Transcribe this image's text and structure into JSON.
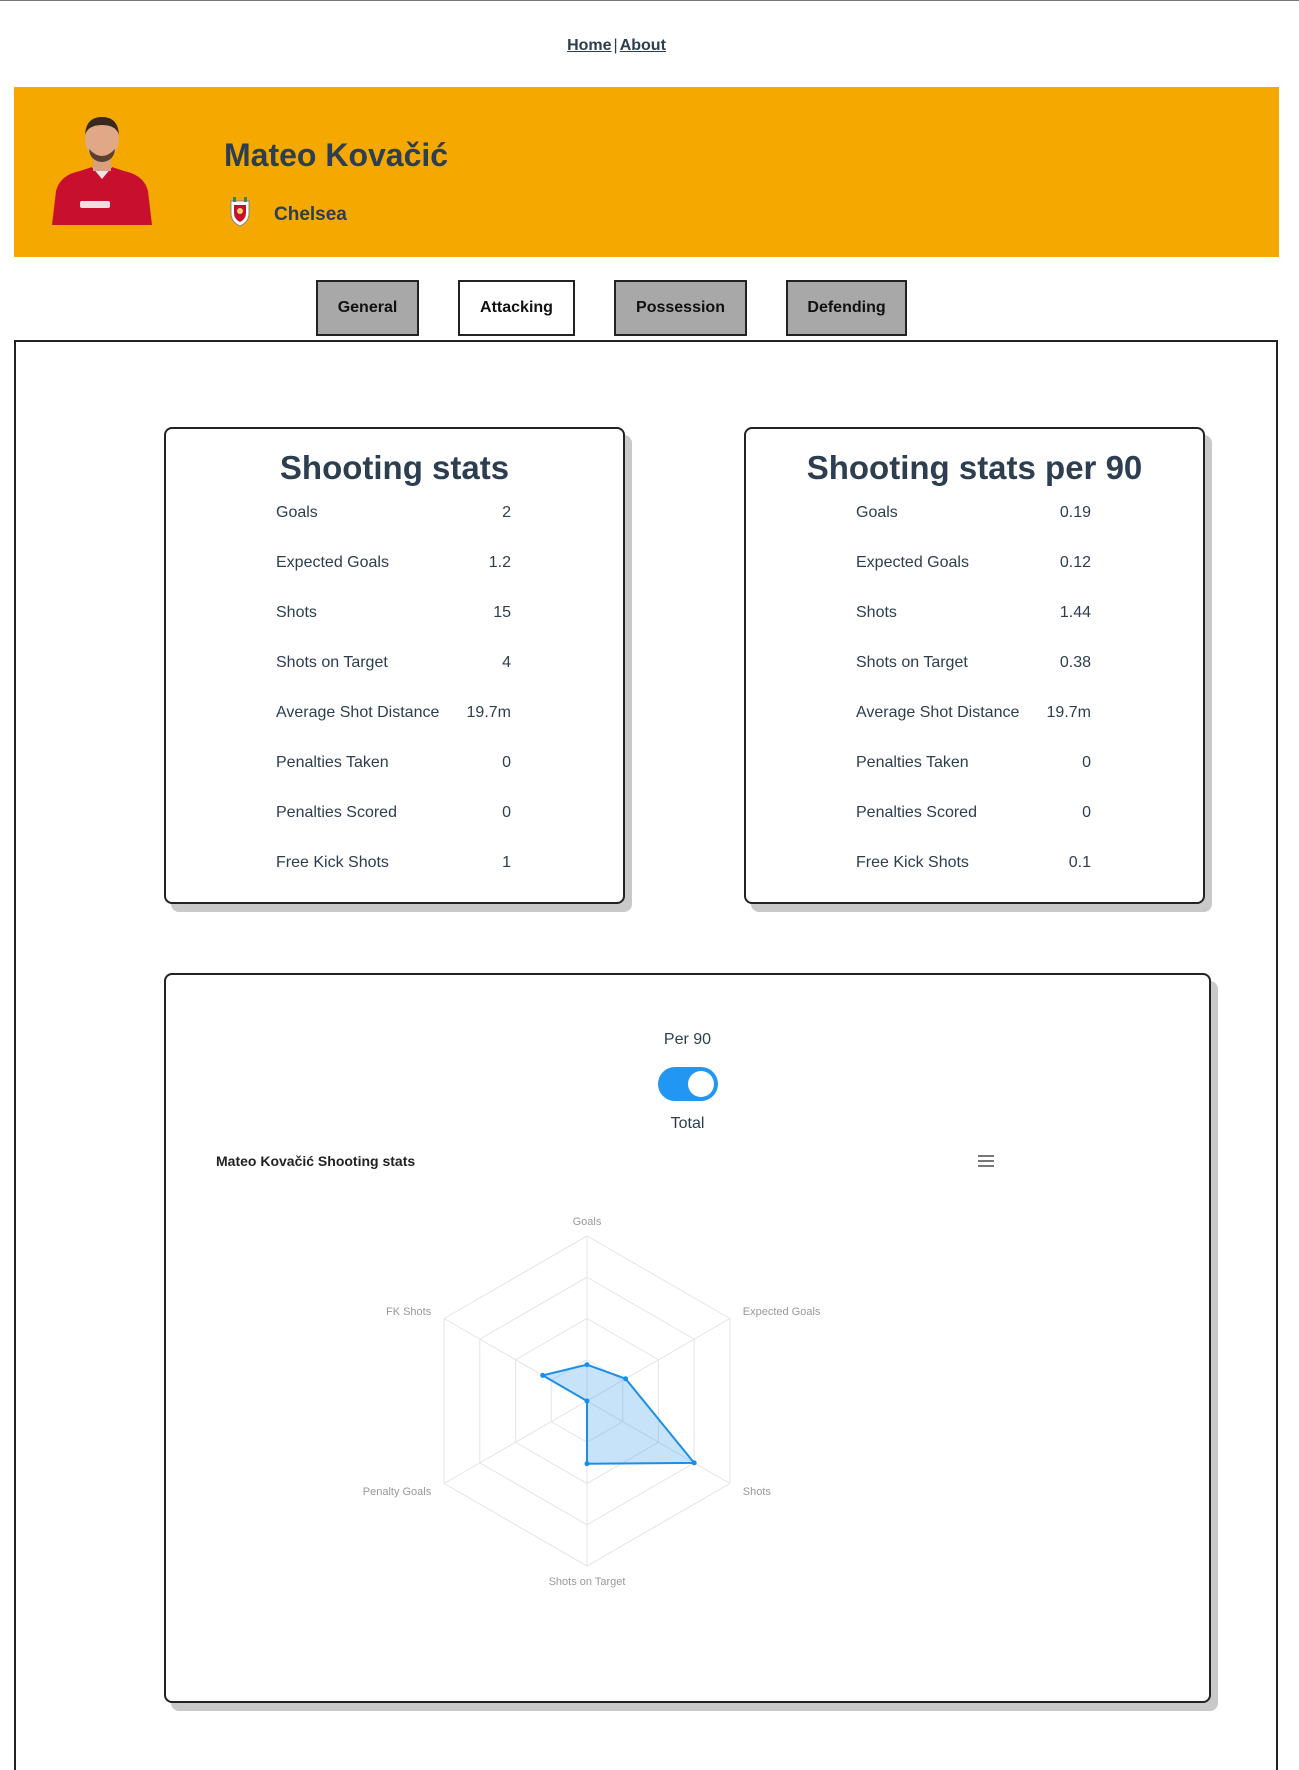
{
  "nav": {
    "home": "Home",
    "separator": "|",
    "about": "About"
  },
  "player": {
    "name": "Mateo Kovačić",
    "club": "Chelsea"
  },
  "tabs": [
    {
      "label": "General"
    },
    {
      "label": "Attacking"
    },
    {
      "label": "Possession"
    },
    {
      "label": "Defending"
    }
  ],
  "active_tab": "Attacking",
  "shooting_stats": {
    "title": "Shooting stats",
    "rows": [
      {
        "label": "Goals",
        "value": "2"
      },
      {
        "label": "Expected Goals",
        "value": "1.2"
      },
      {
        "label": "Shots",
        "value": "15"
      },
      {
        "label": "Shots on Target",
        "value": "4"
      },
      {
        "label": "Average Shot Distance",
        "value": "19.7m"
      },
      {
        "label": "Penalties Taken",
        "value": "0"
      },
      {
        "label": "Penalties Scored",
        "value": "0"
      },
      {
        "label": "Free Kick Shots",
        "value": "1"
      }
    ]
  },
  "shooting_stats_per90": {
    "title": "Shooting stats per 90",
    "rows": [
      {
        "label": "Goals",
        "value": "0.19"
      },
      {
        "label": "Expected Goals",
        "value": "0.12"
      },
      {
        "label": "Shots",
        "value": "1.44"
      },
      {
        "label": "Shots on Target",
        "value": "0.38"
      },
      {
        "label": "Average Shot Distance",
        "value": "19.7m"
      },
      {
        "label": "Penalties Taken",
        "value": "0"
      },
      {
        "label": "Penalties Scored",
        "value": "0"
      },
      {
        "label": "Free Kick Shots",
        "value": "0.1"
      }
    ]
  },
  "toggle": {
    "top_label": "Per 90",
    "bottom_label": "Total",
    "state": "on"
  },
  "colors": {
    "banner": "#f5a800",
    "accent": "#2196f3",
    "series": "#1a8fe8",
    "text": "#2c3e50"
  },
  "icons": {
    "menu": "hamburger-menu-icon",
    "crest": "club-crest-icon",
    "photo": "player-photo"
  },
  "chart_data": {
    "type": "radar",
    "title": "Mateo Kovačić Shooting stats",
    "categories": [
      "Goals",
      "Expected Goals",
      "Shots",
      "Shots on Target",
      "Penalty Goals",
      "FK Shots"
    ],
    "series": [
      {
        "values": [
          0.22,
          0.27,
          0.75,
          0.38,
          0.0,
          0.31
        ]
      }
    ],
    "rlim": [
      0,
      1
    ],
    "grid_levels": 4
  }
}
